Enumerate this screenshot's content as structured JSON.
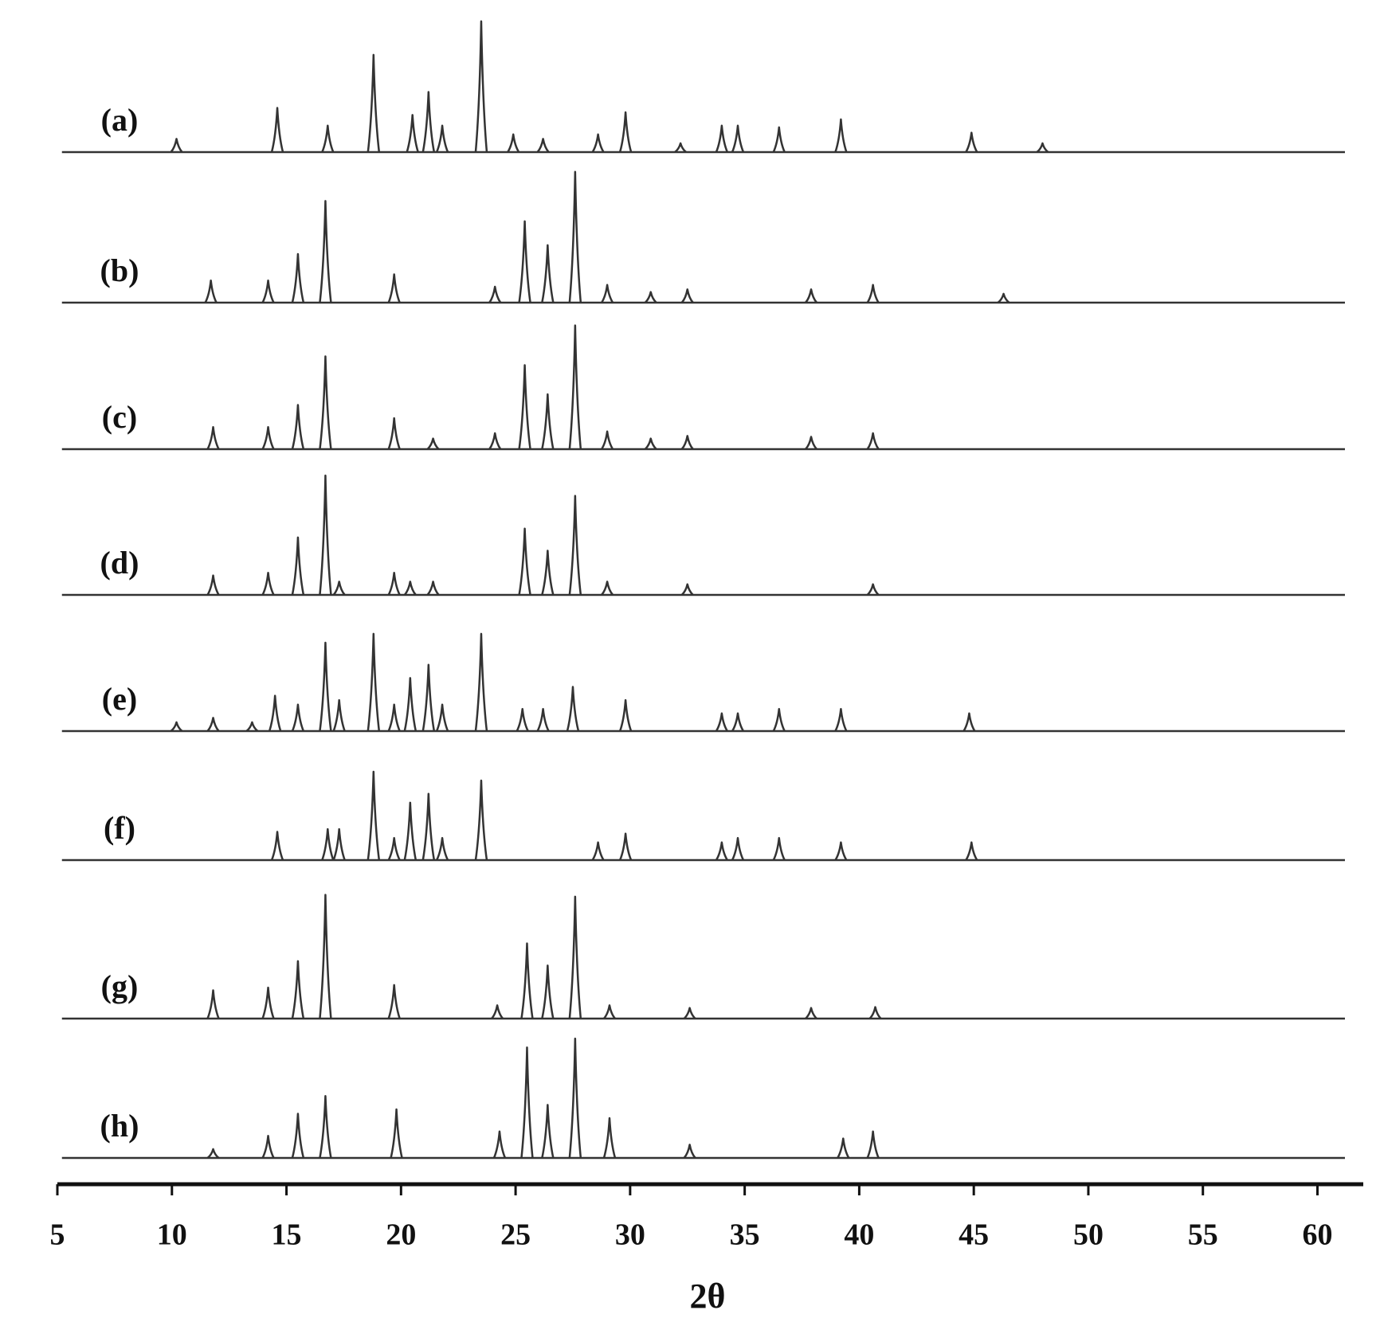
{
  "chart_data": {
    "type": "stacked-peaks",
    "xlabel": "2θ",
    "xlim": [
      5,
      62
    ],
    "xticks": [
      5,
      10,
      15,
      20,
      25,
      30,
      35,
      40,
      45,
      50,
      55,
      60
    ],
    "color": "#333333",
    "series": [
      {
        "name": "(a)",
        "x": [
          10.2,
          14.6,
          16.8,
          18.8,
          20.5,
          21.2,
          21.8,
          23.5,
          24.9,
          26.2,
          28.6,
          29.8,
          32.2,
          34.0,
          34.7,
          36.5,
          39.2,
          44.9,
          48.0
        ],
        "values": [
          15,
          50,
          30,
          110,
          42,
          68,
          30,
          148,
          20,
          15,
          20,
          45,
          10,
          30,
          30,
          28,
          37,
          22,
          10
        ]
      },
      {
        "name": "(b)",
        "x": [
          11.7,
          14.2,
          15.5,
          16.7,
          19.7,
          24.1,
          25.4,
          26.4,
          27.6,
          29.0,
          30.9,
          32.5,
          37.9,
          40.6,
          46.3
        ],
        "values": [
          25,
          25,
          55,
          115,
          32,
          18,
          92,
          65,
          148,
          20,
          12,
          15,
          15,
          20,
          10
        ]
      },
      {
        "name": "(c)",
        "x": [
          11.8,
          14.2,
          15.5,
          16.7,
          19.7,
          21.4,
          24.1,
          25.4,
          26.4,
          27.6,
          29.0,
          30.9,
          32.5,
          37.9,
          40.6
        ],
        "values": [
          25,
          25,
          50,
          105,
          35,
          12,
          18,
          95,
          62,
          140,
          20,
          12,
          15,
          14,
          18
        ]
      },
      {
        "name": "(d)",
        "x": [
          11.8,
          14.2,
          15.5,
          16.7,
          17.3,
          19.7,
          20.4,
          21.4,
          25.4,
          26.4,
          27.6,
          29.0,
          32.5,
          40.6
        ],
        "values": [
          22,
          25,
          65,
          135,
          15,
          25,
          15,
          15,
          75,
          50,
          112,
          15,
          12,
          12
        ]
      },
      {
        "name": "(e)",
        "x": [
          10.2,
          11.8,
          13.5,
          14.5,
          15.5,
          16.7,
          17.3,
          18.8,
          19.7,
          20.4,
          21.2,
          21.8,
          23.5,
          25.3,
          26.2,
          27.5,
          29.8,
          34.0,
          34.7,
          36.5,
          39.2,
          44.8
        ],
        "values": [
          10,
          15,
          10,
          40,
          30,
          100,
          35,
          110,
          30,
          60,
          75,
          30,
          110,
          25,
          25,
          50,
          35,
          20,
          20,
          25,
          25,
          20
        ]
      },
      {
        "name": "(f)",
        "x": [
          14.6,
          16.8,
          17.3,
          18.8,
          19.7,
          20.4,
          21.2,
          21.8,
          23.5,
          28.6,
          29.8,
          34.0,
          34.7,
          36.5,
          39.2,
          44.9
        ],
        "values": [
          32,
          35,
          35,
          100,
          25,
          65,
          75,
          25,
          90,
          20,
          30,
          20,
          25,
          25,
          20,
          20
        ]
      },
      {
        "name": "(g)",
        "x": [
          11.8,
          14.2,
          15.5,
          16.7,
          19.7,
          24.2,
          25.5,
          26.4,
          27.6,
          29.1,
          32.6,
          37.9,
          40.7
        ],
        "values": [
          32,
          35,
          65,
          140,
          38,
          15,
          85,
          60,
          138,
          15,
          12,
          12,
          13
        ]
      },
      {
        "name": "(h)",
        "x": [
          11.8,
          14.2,
          15.5,
          16.7,
          19.8,
          24.3,
          25.5,
          26.4,
          27.6,
          29.1,
          32.6,
          39.3,
          40.6
        ],
        "values": [
          10,
          25,
          50,
          70,
          55,
          30,
          125,
          60,
          135,
          45,
          15,
          22,
          30
        ]
      }
    ]
  }
}
